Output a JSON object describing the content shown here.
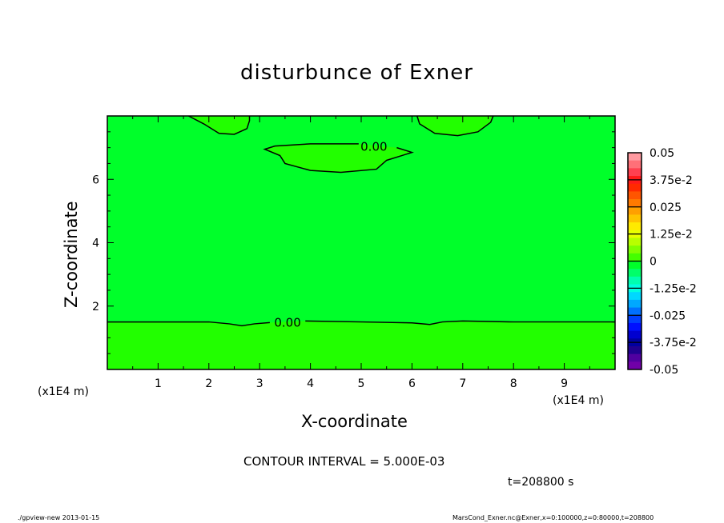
{
  "chart_data": {
    "type": "contour",
    "title": "disturbunce of Exner",
    "xlabel": "X-coordinate",
    "ylabel": "Z-coordinate",
    "x_unit": "(x1E4 m)",
    "x_unit_right": "(x1E4 m)",
    "xlim": [
      0,
      10
    ],
    "ylim": [
      0,
      8
    ],
    "xticks": [
      "1",
      "2",
      "3",
      "4",
      "5",
      "6",
      "7",
      "8",
      "9"
    ],
    "yticks": [
      "2",
      "4",
      "6"
    ],
    "background_color": "#00ff2a",
    "patch_color": "#22ff00",
    "contours": [
      {
        "label": "0.00",
        "label_at": [
          3.55,
          1.5
        ],
        "points": [
          [
            0,
            1.5
          ],
          [
            2,
            1.5
          ],
          [
            2.4,
            1.44
          ],
          [
            2.65,
            1.38
          ],
          [
            2.9,
            1.44
          ],
          [
            3.2,
            1.48
          ]
        ],
        "points2": [
          [
            3.9,
            1.53
          ],
          [
            5,
            1.5
          ],
          [
            6,
            1.47
          ],
          [
            6.35,
            1.42
          ],
          [
            6.6,
            1.5
          ],
          [
            7,
            1.53
          ],
          [
            8,
            1.5
          ],
          [
            10,
            1.5
          ]
        ]
      },
      {
        "label": "0.00",
        "label_at": [
          5.25,
          7.05
        ],
        "points": [
          [
            4.95,
            7.12
          ],
          [
            4.0,
            7.12
          ],
          [
            3.3,
            7.05
          ],
          [
            3.1,
            6.95
          ],
          [
            3.4,
            6.75
          ],
          [
            3.5,
            6.5
          ],
          [
            4.0,
            6.28
          ],
          [
            4.6,
            6.22
          ],
          [
            5.3,
            6.32
          ],
          [
            5.5,
            6.6
          ],
          [
            5.8,
            6.75
          ],
          [
            6.0,
            6.85
          ],
          [
            5.8,
            6.95
          ],
          [
            5.7,
            7.0
          ]
        ]
      },
      {
        "points": [
          [
            1.6,
            8
          ],
          [
            1.9,
            7.75
          ],
          [
            2.2,
            7.45
          ],
          [
            2.5,
            7.42
          ],
          [
            2.75,
            7.6
          ],
          [
            2.8,
            7.85
          ],
          [
            2.8,
            8
          ]
        ]
      },
      {
        "points": [
          [
            6.1,
            8
          ],
          [
            6.15,
            7.75
          ],
          [
            6.45,
            7.45
          ],
          [
            6.9,
            7.38
          ],
          [
            7.3,
            7.5
          ],
          [
            7.55,
            7.8
          ],
          [
            7.6,
            8
          ]
        ]
      }
    ],
    "colorbar": {
      "labels": [
        "0.05",
        "3.75e-2",
        "0.025",
        "1.25e-2",
        "0",
        "-1.25e-2",
        "-0.025",
        "-3.75e-2",
        "-0.05"
      ],
      "colors": [
        "#ff9aa0",
        "#ff7078",
        "#ff4050",
        "#ff1a1a",
        "#ff2a00",
        "#ff5500",
        "#ff7a00",
        "#ffa000",
        "#ffc400",
        "#ffea00",
        "#e8ff00",
        "#b8ff00",
        "#80ff00",
        "#44ff00",
        "#00ff2a",
        "#00ff6a",
        "#00ffb0",
        "#00ffe0",
        "#00d8ff",
        "#00a8ff",
        "#0070ff",
        "#0040ff",
        "#0010ff",
        "#0000d0",
        "#0000a0",
        "#200090",
        "#5000a0",
        "#7000a8"
      ]
    }
  },
  "annotations": {
    "contour_interval": "CONTOUR INTERVAL = 5.000E-03",
    "time": "t=208800 s",
    "footer_left": "./gpview-new  2013-01-15",
    "footer_right": "MarsCond_Exner.nc@Exner,x=0:100000,z=0:80000,t=208800"
  }
}
